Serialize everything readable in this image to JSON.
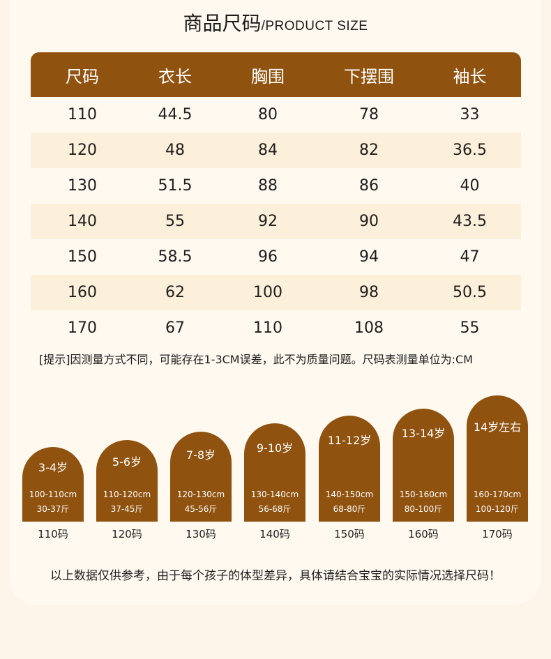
{
  "title": {
    "zh": "商品尺码",
    "en": "/PRODUCT SIZE"
  },
  "table": {
    "headers": [
      "尺码",
      "衣长",
      "胸围",
      "下摆围",
      "袖长"
    ],
    "rows": [
      [
        "110",
        "44.5",
        "80",
        "78",
        "33"
      ],
      [
        "120",
        "48",
        "84",
        "82",
        "36.5"
      ],
      [
        "130",
        "51.5",
        "88",
        "86",
        "40"
      ],
      [
        "140",
        "55",
        "92",
        "90",
        "43.5"
      ],
      [
        "150",
        "58.5",
        "96",
        "94",
        "47"
      ],
      [
        "160",
        "62",
        "100",
        "98",
        "50.5"
      ],
      [
        "170",
        "67",
        "110",
        "108",
        "55"
      ]
    ]
  },
  "note": "[提示]因测量方式不同，可能存在1-3CM误差，此不为质量问题。尺码表测量单位为:CM",
  "size_guide": [
    {
      "age": "3-4岁",
      "height": "100-110cm",
      "weight": "30-37斤",
      "size": "110码"
    },
    {
      "age": "5-6岁",
      "height": "110-120cm",
      "weight": "37-45斤",
      "size": "120码"
    },
    {
      "age": "7-8岁",
      "height": "120-130cm",
      "weight": "45-56斤",
      "size": "130码"
    },
    {
      "age": "9-10岁",
      "height": "130-140cm",
      "weight": "56-68斤",
      "size": "140码"
    },
    {
      "age": "11-12岁",
      "height": "140-150cm",
      "weight": "68-80斤",
      "size": "150码"
    },
    {
      "age": "13-14岁",
      "height": "150-160cm",
      "weight": "80-100斤",
      "size": "160码"
    },
    {
      "age": "14岁左右",
      "height": "160-170cm",
      "weight": "100-120斤",
      "size": "170码"
    }
  ],
  "footer": "以上数据仅供参考，由于每个孩子的体型差异，具体请结合宝宝的实际情况选择尺码！",
  "colors": {
    "brown": "#8f520f",
    "stripe": "#fdf0db",
    "background": "#fdf5e9"
  }
}
